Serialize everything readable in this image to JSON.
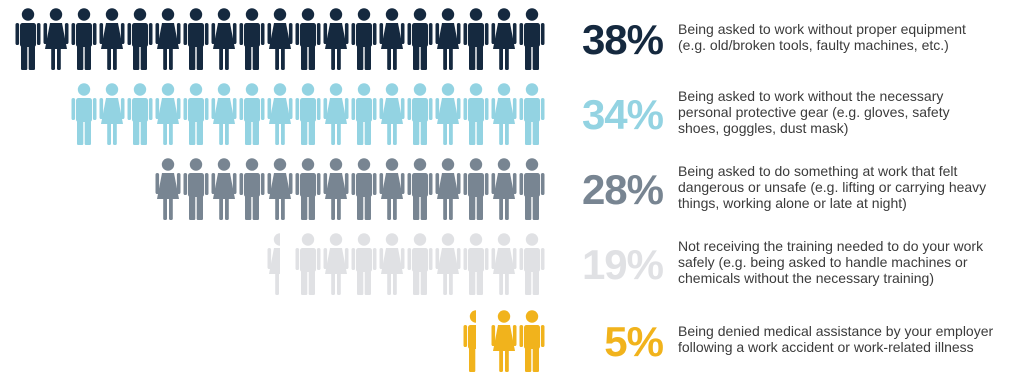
{
  "chart_data": {
    "type": "pictogram",
    "total_icons": 19,
    "rows": [
      {
        "value": 38,
        "label": "38%",
        "color": "#15293f",
        "icons": 19,
        "description": [
          "Being asked to work without proper equipment",
          "(e.g. old/broken tools, faulty machines, etc.)"
        ]
      },
      {
        "value": 34,
        "label": "34%",
        "color": "#93d3e2",
        "icons": 17,
        "description": [
          "Being asked to work without the necessary",
          "personal protective gear (e.g. gloves, safety",
          "shoes, goggles, dust mask)"
        ]
      },
      {
        "value": 28,
        "label": "28%",
        "color": "#788592",
        "icons": 14,
        "description": [
          "Being asked to do something at work that felt",
          "dangerous or unsafe (e.g. lifting or carrying heavy",
          "things, working alone or late at night)"
        ]
      },
      {
        "value": 19,
        "label": "19%",
        "color": "#e0e1e4",
        "icons": 9.5,
        "description": [
          "Not receiving the training needed to do your work",
          "safely (e.g. being asked to handle machines or",
          "chemicals without the necessary training)"
        ]
      },
      {
        "value": 5,
        "label": "5%",
        "color": "#f1b31c",
        "icons": 2.5,
        "description": [
          "Being denied medical assistance by your employer",
          "following a work accident or work-related illness"
        ]
      }
    ]
  }
}
